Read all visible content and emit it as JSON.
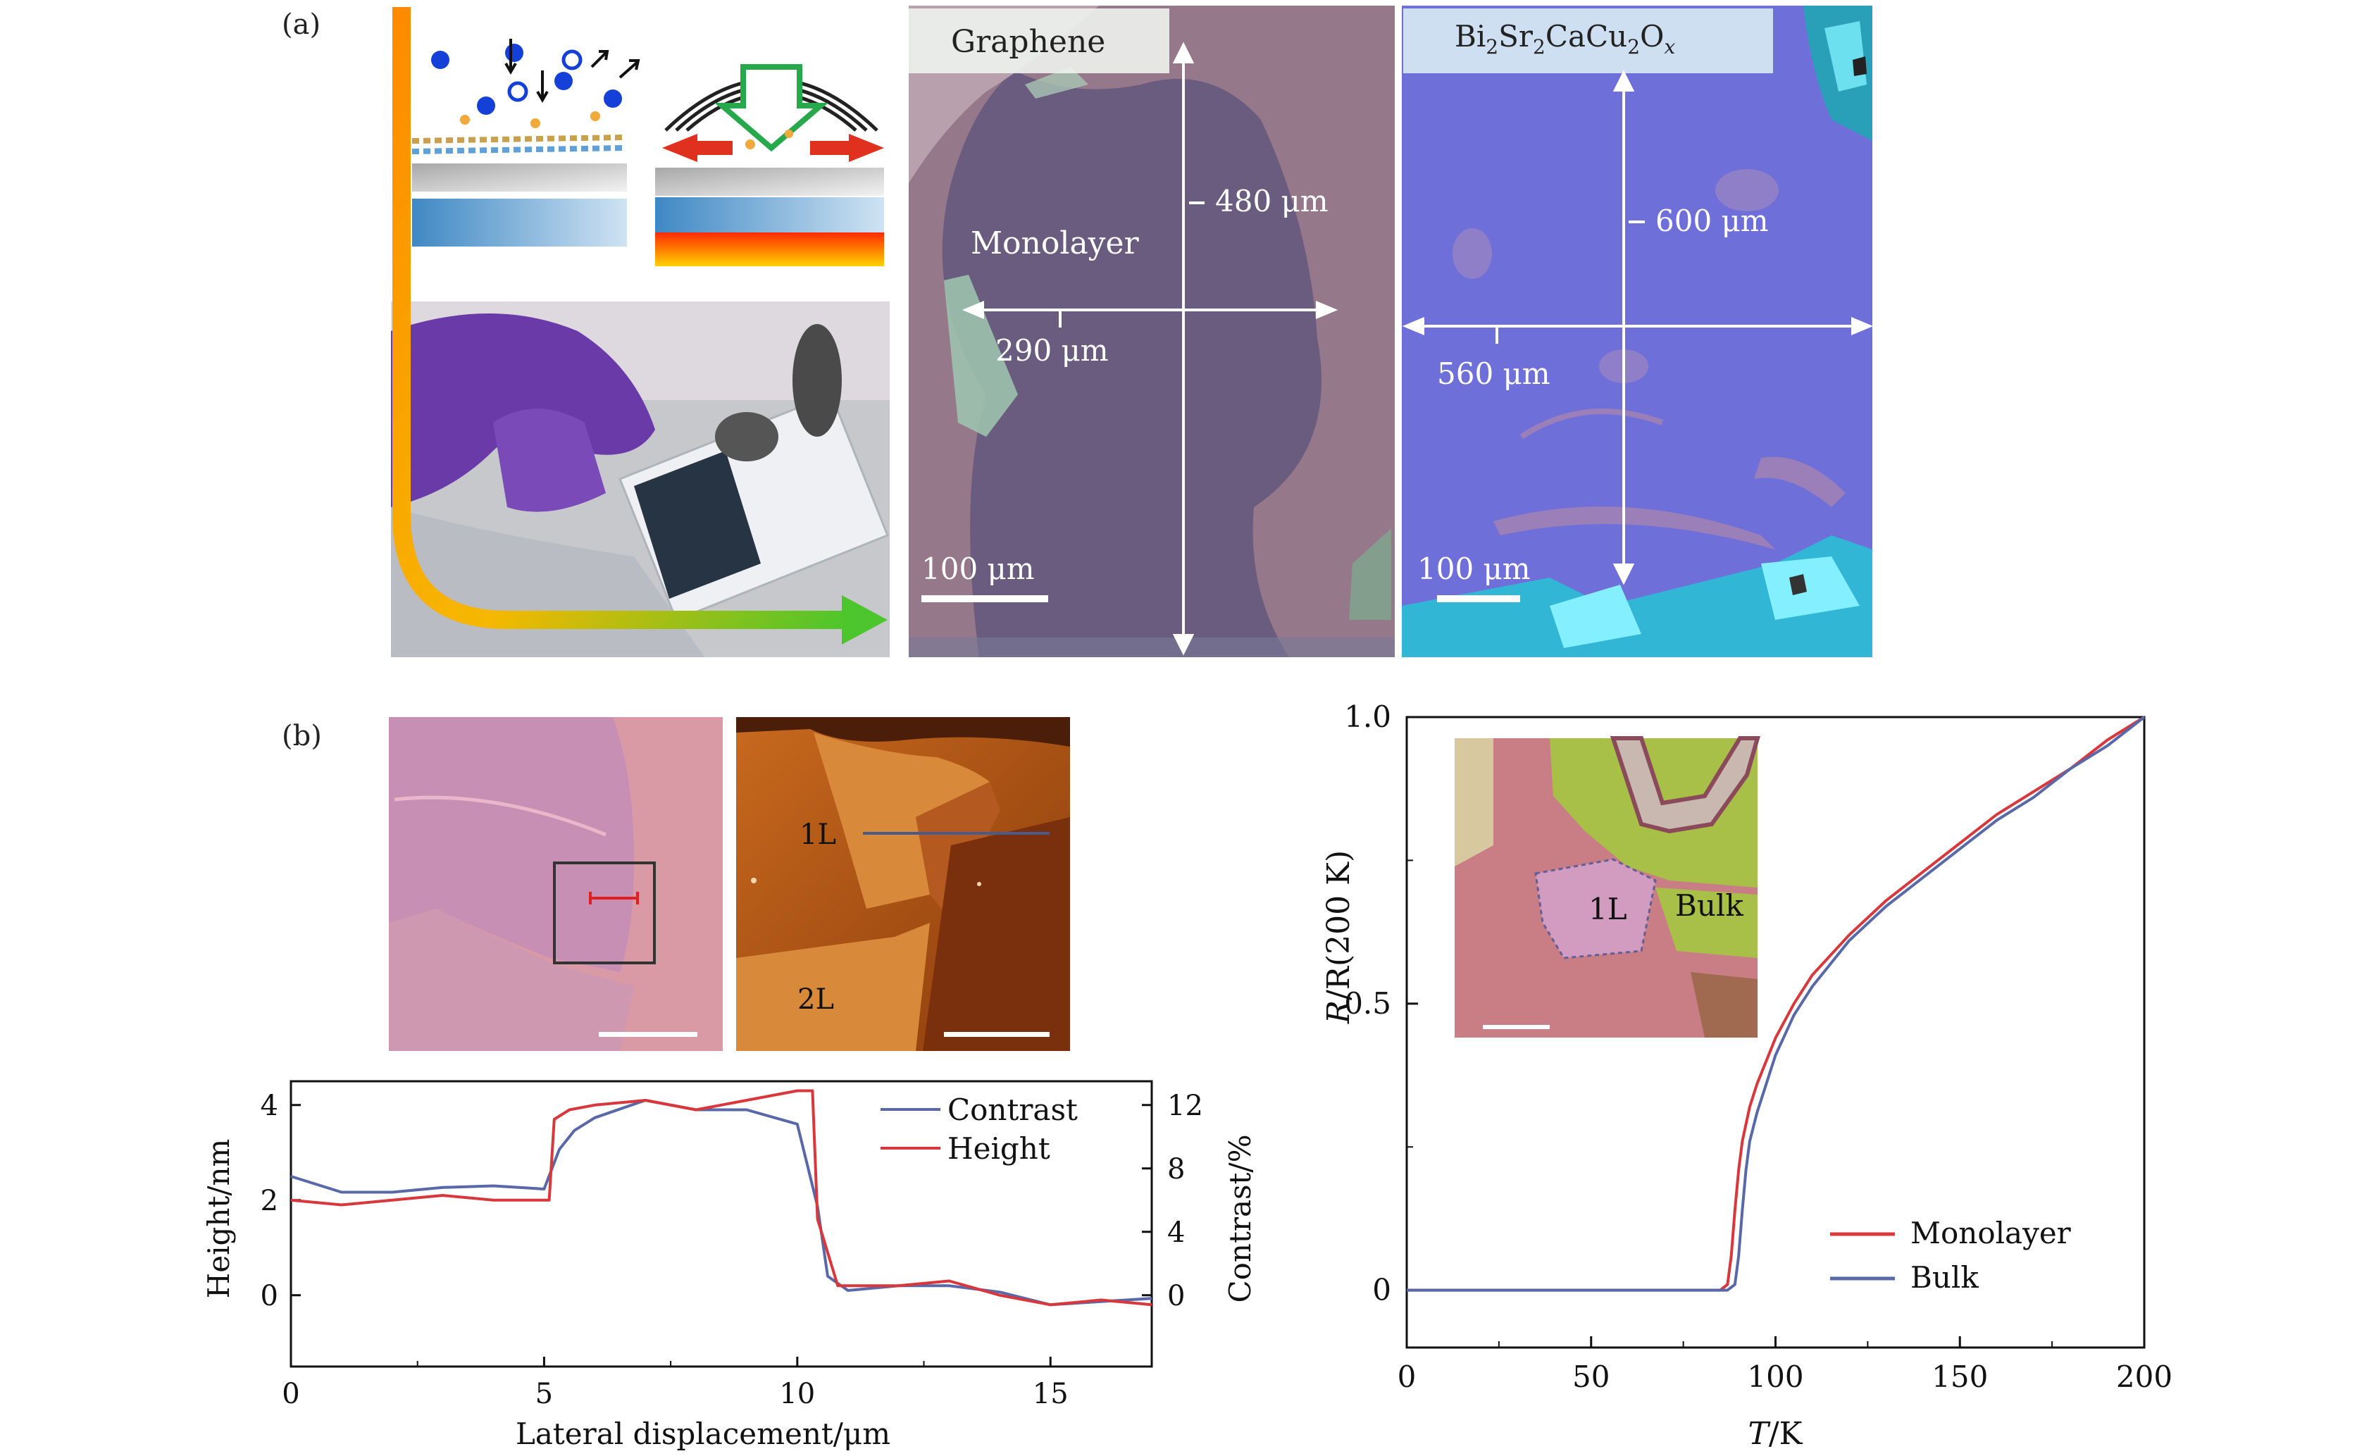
{
  "panel_a": {
    "label": "(a)",
    "graphene": {
      "title": "Graphene",
      "monolayer_label": "Monolayer",
      "vertical_dim": "480 μm",
      "horizontal_dim": "290 μm",
      "scale_bar": "100 μm"
    },
    "bscco": {
      "title_parts": [
        "Bi",
        "2",
        "Sr",
        "2",
        "CaCu",
        "2",
        "O",
        "x"
      ],
      "vertical_dim": "600 μm",
      "horizontal_dim": "560 μm",
      "scale_bar": "100 μm"
    }
  },
  "panel_b": {
    "label": "(b)",
    "afm_labels": {
      "one_layer": "1L",
      "two_layer": "2L"
    },
    "inset_labels": {
      "one_layer": "1L",
      "bulk": "Bulk"
    }
  },
  "colors": {
    "contrast_line": "#5868a8",
    "height_line": "#d8383c",
    "monolayer_line": "#d8383c",
    "bulk_line": "#5868a8"
  },
  "chart_data": [
    {
      "type": "line",
      "xlabel": "Lateral displacement/μm",
      "ylabel_left": "Height/nm",
      "ylabel_right": "Contrast/%",
      "xlim": [
        0,
        17
      ],
      "ylim": [
        -1.5,
        4.5
      ],
      "y2lim": [
        -4.5,
        13.5
      ],
      "xticks": [
        0,
        5,
        10,
        15
      ],
      "yticks": [
        0,
        2,
        4
      ],
      "y2ticks": [
        0,
        4,
        8,
        12
      ],
      "legend_position": "top-right",
      "series": [
        {
          "name": "Contrast",
          "axis": "right",
          "x": [
            0,
            1,
            2,
            3,
            4,
            5,
            5.3,
            5.6,
            6,
            7,
            8,
            9,
            10,
            10.4,
            10.6,
            11,
            12,
            13,
            14,
            15,
            16,
            17
          ],
          "values": [
            7.5,
            6.5,
            6.5,
            6.8,
            6.9,
            6.7,
            9.2,
            10.4,
            11.2,
            12.3,
            11.7,
            11.7,
            10.8,
            5.6,
            1.2,
            0.3,
            0.6,
            0.6,
            0.2,
            -0.6,
            -0.4,
            -0.2
          ]
        },
        {
          "name": "Height",
          "axis": "left",
          "x": [
            0,
            1,
            2,
            3,
            4,
            5.1,
            5.2,
            5.5,
            6,
            7,
            8,
            9,
            10,
            10.3,
            10.4,
            10.8,
            11,
            12,
            13,
            14,
            15,
            16,
            17
          ],
          "values": [
            2.0,
            1.9,
            2.0,
            2.1,
            2.0,
            2.0,
            3.7,
            3.9,
            4.0,
            4.1,
            3.9,
            4.1,
            4.3,
            4.3,
            1.6,
            0.2,
            0.2,
            0.2,
            0.3,
            0.0,
            -0.2,
            -0.1,
            -0.2
          ]
        }
      ]
    },
    {
      "type": "line",
      "xlabel_italic": "T",
      "xlabel_rest": "/K",
      "ylabel_italic": "R",
      "ylabel_rest": "/R(200 K)",
      "xlim": [
        0,
        200
      ],
      "ylim": [
        -0.1,
        1.0
      ],
      "xticks": [
        0,
        50,
        100,
        150,
        200
      ],
      "yticks": [
        0,
        0.5,
        1.0
      ],
      "ytick_labels": [
        "0",
        "0.5",
        "1.0"
      ],
      "legend_position": "bottom-right",
      "series": [
        {
          "name": "Monolayer",
          "x": [
            0,
            85,
            87,
            88,
            89,
            90,
            91,
            93,
            95,
            100,
            105,
            110,
            120,
            130,
            140,
            150,
            160,
            170,
            180,
            190,
            200
          ],
          "values": [
            0,
            0,
            0.01,
            0.06,
            0.14,
            0.21,
            0.26,
            0.32,
            0.36,
            0.44,
            0.5,
            0.55,
            0.62,
            0.68,
            0.73,
            0.78,
            0.83,
            0.87,
            0.91,
            0.96,
            1.0
          ]
        },
        {
          "name": "Bulk",
          "x": [
            0,
            87,
            89,
            90,
            91,
            92,
            93,
            95,
            97,
            100,
            105,
            110,
            120,
            130,
            140,
            150,
            160,
            170,
            180,
            190,
            200
          ],
          "values": [
            0,
            0,
            0.01,
            0.06,
            0.14,
            0.21,
            0.26,
            0.31,
            0.35,
            0.41,
            0.48,
            0.53,
            0.61,
            0.67,
            0.72,
            0.77,
            0.82,
            0.86,
            0.91,
            0.95,
            1.0
          ]
        }
      ]
    }
  ]
}
